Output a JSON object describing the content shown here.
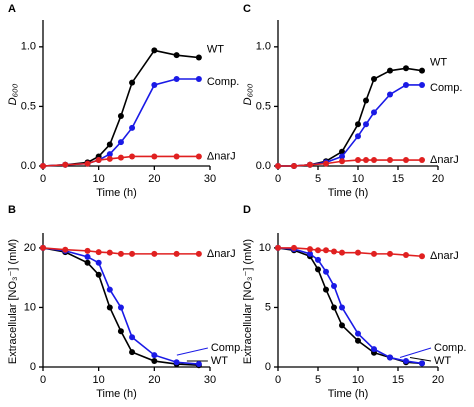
{
  "chart_data": [
    {
      "type": "line",
      "title": "A",
      "xlabel": "Time (h)",
      "ylabel": "D₆₀₀",
      "x": [
        0,
        4,
        8,
        10,
        12,
        14,
        16,
        20,
        24,
        28
      ],
      "xlim": [
        0,
        30
      ],
      "xticks": [
        0,
        10,
        20,
        30
      ],
      "ylim": [
        0,
        1.2
      ],
      "yticks": [
        {
          "value": 0,
          "label": "0.0"
        },
        {
          "value": 0.5,
          "label": "0.5"
        },
        {
          "value": 1,
          "label": "1.0"
        }
      ],
      "series": [
        {
          "name": "WT",
          "color": "#000000",
          "values": [
            0,
            0.01,
            0.03,
            0.08,
            0.18,
            0.42,
            0.7,
            0.97,
            0.93,
            0.91
          ]
        },
        {
          "name": "Comp.",
          "color": "#1a1ae6",
          "values": [
            0,
            0.01,
            0.02,
            0.05,
            0.1,
            0.2,
            0.32,
            0.68,
            0.73,
            0.73
          ]
        },
        {
          "name": "ΔnarJ",
          "color": "#e02020",
          "values": [
            0,
            0.01,
            0.02,
            0.05,
            0.06,
            0.07,
            0.08,
            0.08,
            0.08,
            0.08
          ]
        }
      ]
    },
    {
      "type": "line",
      "title": "C",
      "xlabel": "Time (h)",
      "ylabel": "D₆₀₀",
      "x": [
        0,
        2,
        4,
        6,
        8,
        10,
        11,
        12,
        14,
        16,
        18
      ],
      "xlim": [
        0,
        20
      ],
      "xticks": [
        0,
        5,
        10,
        15,
        20
      ],
      "ylim": [
        0,
        1.2
      ],
      "yticks": [
        {
          "value": 0,
          "label": "0.0"
        },
        {
          "value": 0.5,
          "label": "0.5"
        },
        {
          "value": 1,
          "label": "1.0"
        }
      ],
      "series": [
        {
          "name": "WT",
          "color": "#000000",
          "values": [
            0,
            0,
            0.01,
            0.04,
            0.12,
            0.35,
            0.55,
            0.73,
            0.8,
            0.82,
            0.8
          ]
        },
        {
          "name": "Comp.",
          "color": "#1a1ae6",
          "values": [
            0,
            0,
            0.01,
            0.03,
            0.08,
            0.25,
            0.35,
            0.45,
            0.6,
            0.68,
            0.68
          ]
        },
        {
          "name": "ΔnarJ",
          "color": "#e02020",
          "values": [
            0,
            0,
            0.01,
            0.02,
            0.04,
            0.05,
            0.05,
            0.05,
            0.05,
            0.05,
            0.05
          ]
        }
      ]
    },
    {
      "type": "line",
      "title": "B",
      "xlabel": "Time (h)",
      "ylabel": "Extracellular [NO₃⁻] (mM)",
      "x": [
        0,
        4,
        8,
        10,
        12,
        14,
        16,
        20,
        24,
        28
      ],
      "xlim": [
        0,
        30
      ],
      "xticks": [
        0,
        10,
        20,
        30
      ],
      "ylim": [
        0,
        22
      ],
      "yticks": [
        0,
        10,
        20
      ],
      "series": [
        {
          "name": "WT",
          "color": "#000000",
          "values": [
            20,
            19.3,
            17.5,
            15.5,
            10,
            6,
            2.5,
            1,
            0.5,
            0.3
          ]
        },
        {
          "name": "Comp.",
          "color": "#1a1ae6",
          "values": [
            20,
            19.5,
            18.5,
            17.5,
            13,
            10,
            5,
            2,
            0.8,
            0.5
          ]
        },
        {
          "name": "ΔnarJ",
          "color": "#e02020",
          "values": [
            20,
            19.7,
            19.5,
            19.3,
            19.2,
            19,
            19,
            19,
            19,
            19
          ]
        }
      ]
    },
    {
      "type": "line",
      "title": "D",
      "xlabel": "Time (h)",
      "ylabel": "Extracellular [NO₃⁻] (mM)",
      "x": [
        0,
        2,
        4,
        5,
        6,
        7,
        8,
        10,
        12,
        14,
        16,
        18
      ],
      "xlim": [
        0,
        20
      ],
      "xticks": [
        0,
        5,
        10,
        15,
        20
      ],
      "ylim": [
        0,
        11
      ],
      "yticks": [
        0,
        5,
        10
      ],
      "series": [
        {
          "name": "WT",
          "color": "#000000",
          "values": [
            10,
            9.8,
            9.3,
            8.2,
            6.5,
            5,
            3.5,
            2.2,
            1.2,
            0.8,
            0.4,
            0.3
          ]
        },
        {
          "name": "Comp.",
          "color": "#1a1ae6",
          "values": [
            10,
            9.9,
            9.5,
            9,
            8,
            6.8,
            5,
            2.8,
            1.5,
            0.8,
            0.5,
            0.3
          ]
        },
        {
          "name": "ΔnarJ",
          "color": "#e02020",
          "values": [
            10,
            10,
            9.9,
            9.8,
            9.8,
            9.7,
            9.6,
            9.6,
            9.5,
            9.5,
            9.4,
            9.3
          ]
        }
      ]
    }
  ]
}
